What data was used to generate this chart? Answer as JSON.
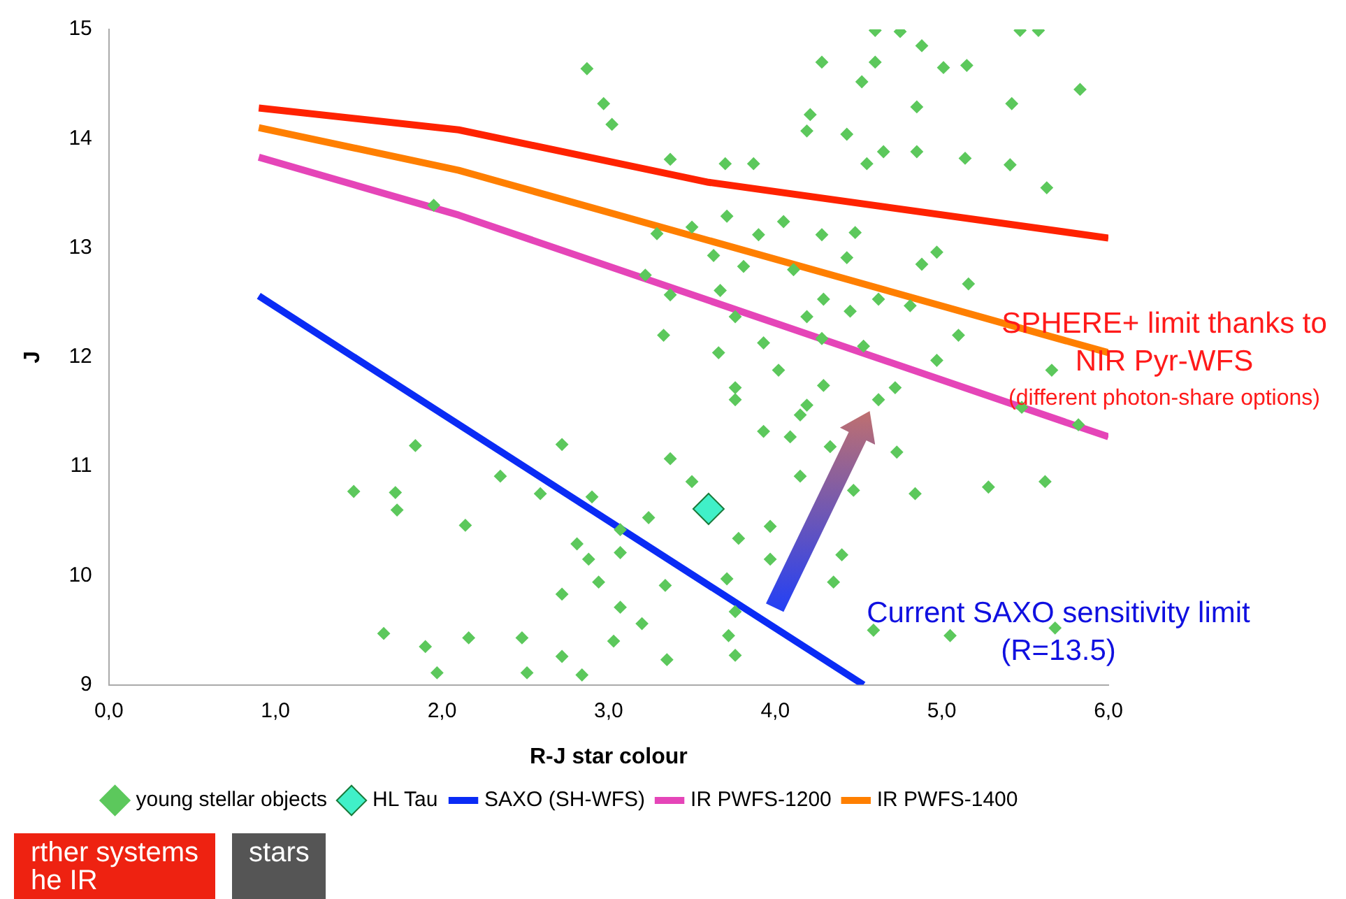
{
  "chart_data": {
    "type": "scatter",
    "xlabel": "R-J star colour",
    "ylabel": "J",
    "xlim": [
      0,
      6
    ],
    "ylim": [
      9,
      15
    ],
    "xticks": [
      {
        "value": 0,
        "label": "0,0"
      },
      {
        "value": 1,
        "label": "1,0"
      },
      {
        "value": 2,
        "label": "2,0"
      },
      {
        "value": 3,
        "label": "3,0"
      },
      {
        "value": 4,
        "label": "4,0"
      },
      {
        "value": 5,
        "label": "5,0"
      },
      {
        "value": 6,
        "label": "6,0"
      }
    ],
    "yticks": [
      9,
      10,
      11,
      12,
      13,
      14,
      15
    ],
    "grid": false,
    "legend": "bottom",
    "annotations": [
      "SPHERE+ limit thanks to",
      "NIR Pyr-WFS",
      "(different photon-share options)",
      "Current SAXO sensitivity limit",
      "(R=13.5)",
      "rther systems",
      "he IR",
      "stars"
    ],
    "series": [
      {
        "name": "SAXO (SH-WFS)",
        "type": "line",
        "color": "#0a2bf5",
        "marker": "none",
        "x": [
          0.9,
          4.53
        ],
        "values": [
          12.56,
          9
        ]
      },
      {
        "name": "IR PWFS-1200",
        "type": "line",
        "color": "#e545b8",
        "marker": "none",
        "x": [
          0.9,
          2.1,
          6.0
        ],
        "values": [
          13.83,
          13.3,
          11.27
        ]
      },
      {
        "name": "IR PWFS-1400",
        "type": "line",
        "color": "#ff7f00",
        "marker": "none",
        "x": [
          0.9,
          2.1,
          6.0
        ],
        "values": [
          14.1,
          13.71,
          12.04
        ]
      },
      {
        "type": "line",
        "color": "#ff2200",
        "marker": "none",
        "x": [
          0.9,
          2.1,
          3.6,
          6.0
        ],
        "values": [
          14.28,
          14.08,
          13.6,
          13.09
        ]
      },
      {
        "name": "young stellar objects",
        "color": "#5cc85c",
        "marker": "diamond",
        "x": [
          4.6,
          4.75,
          4.88,
          5.47,
          5.58,
          4.28,
          4.6,
          5.01,
          5.15,
          4.52,
          5.83,
          4.21,
          4.85,
          5.42,
          4.19,
          4.43,
          4.65,
          4.85,
          5.14,
          5.41,
          3.7,
          3.87,
          4.55,
          5.63,
          2.87,
          2.97,
          3.02,
          3.37,
          1.95,
          3.5,
          3.29,
          3.22,
          3.37,
          3.33,
          3.71,
          4.05,
          4.28,
          3.9,
          4.48,
          4.97,
          3.81,
          4.11,
          4.43,
          4.88,
          5.16,
          3.63,
          3.67,
          4.29,
          4.62,
          4.81,
          3.76,
          4.19,
          4.45,
          3.66,
          3.93,
          4.28,
          4.53,
          4.97,
          5.48,
          5.82,
          5.66,
          3.76,
          4.02,
          4.29,
          4.72,
          3.76,
          4.15,
          4.62,
          1.84,
          2.72,
          2.35,
          1.47,
          1.72,
          1.73,
          2.14,
          2.59,
          2.9,
          3.07,
          3.24,
          3.5,
          3.37,
          2.81,
          2.88,
          3.07,
          2.94,
          2.72,
          3.07,
          3.2,
          3.34,
          1.65,
          1.9,
          2.16,
          2.48,
          2.72,
          3.03,
          3.35,
          1.97,
          2.51,
          2.84,
          4.19,
          3.93,
          4.09,
          4.33,
          4.15,
          4.47,
          3.97,
          3.78,
          3.97,
          3.71,
          3.76,
          4.4,
          4.35,
          4.73,
          4.84,
          5.28,
          5.62,
          3.72,
          3.76,
          4.59,
          5.05,
          5.68,
          5.1
        ],
        "values": [
          14.99,
          14.98,
          14.85,
          14.99,
          14.99,
          14.7,
          14.7,
          14.65,
          14.67,
          14.52,
          14.45,
          14.22,
          14.29,
          14.32,
          14.07,
          14.04,
          13.88,
          13.88,
          13.82,
          13.76,
          13.77,
          13.77,
          13.77,
          13.55,
          14.64,
          14.32,
          14.13,
          13.81,
          13.39,
          13.19,
          13.13,
          12.75,
          12.57,
          12.2,
          13.29,
          13.24,
          13.12,
          13.12,
          13.14,
          12.96,
          12.83,
          12.8,
          12.91,
          12.85,
          12.67,
          12.93,
          12.61,
          12.53,
          12.53,
          12.47,
          12.37,
          12.37,
          12.42,
          12.04,
          12.13,
          12.17,
          12.1,
          11.97,
          11.54,
          11.38,
          11.88,
          11.72,
          11.88,
          11.74,
          11.72,
          11.61,
          11.47,
          11.61,
          11.19,
          11.2,
          10.91,
          10.77,
          10.76,
          10.6,
          10.46,
          10.75,
          10.72,
          10.42,
          10.53,
          10.86,
          11.07,
          10.29,
          10.15,
          10.21,
          9.94,
          9.83,
          9.71,
          9.56,
          9.91,
          9.47,
          9.35,
          9.43,
          9.43,
          9.26,
          9.4,
          9.23,
          9.11,
          9.11,
          9.09,
          11.56,
          11.32,
          11.27,
          11.18,
          10.91,
          10.78,
          10.45,
          10.34,
          10.15,
          9.97,
          9.67,
          10.19,
          9.94,
          11.13,
          10.75,
          10.81,
          10.86,
          9.45,
          9.27,
          9.5,
          9.45,
          9.52,
          12.2
        ]
      },
      {
        "name": "HL Tau",
        "color": "#40f0c8",
        "marker": "diamond",
        "x": [
          3.6
        ],
        "values": [
          10.61
        ]
      }
    ]
  }
}
